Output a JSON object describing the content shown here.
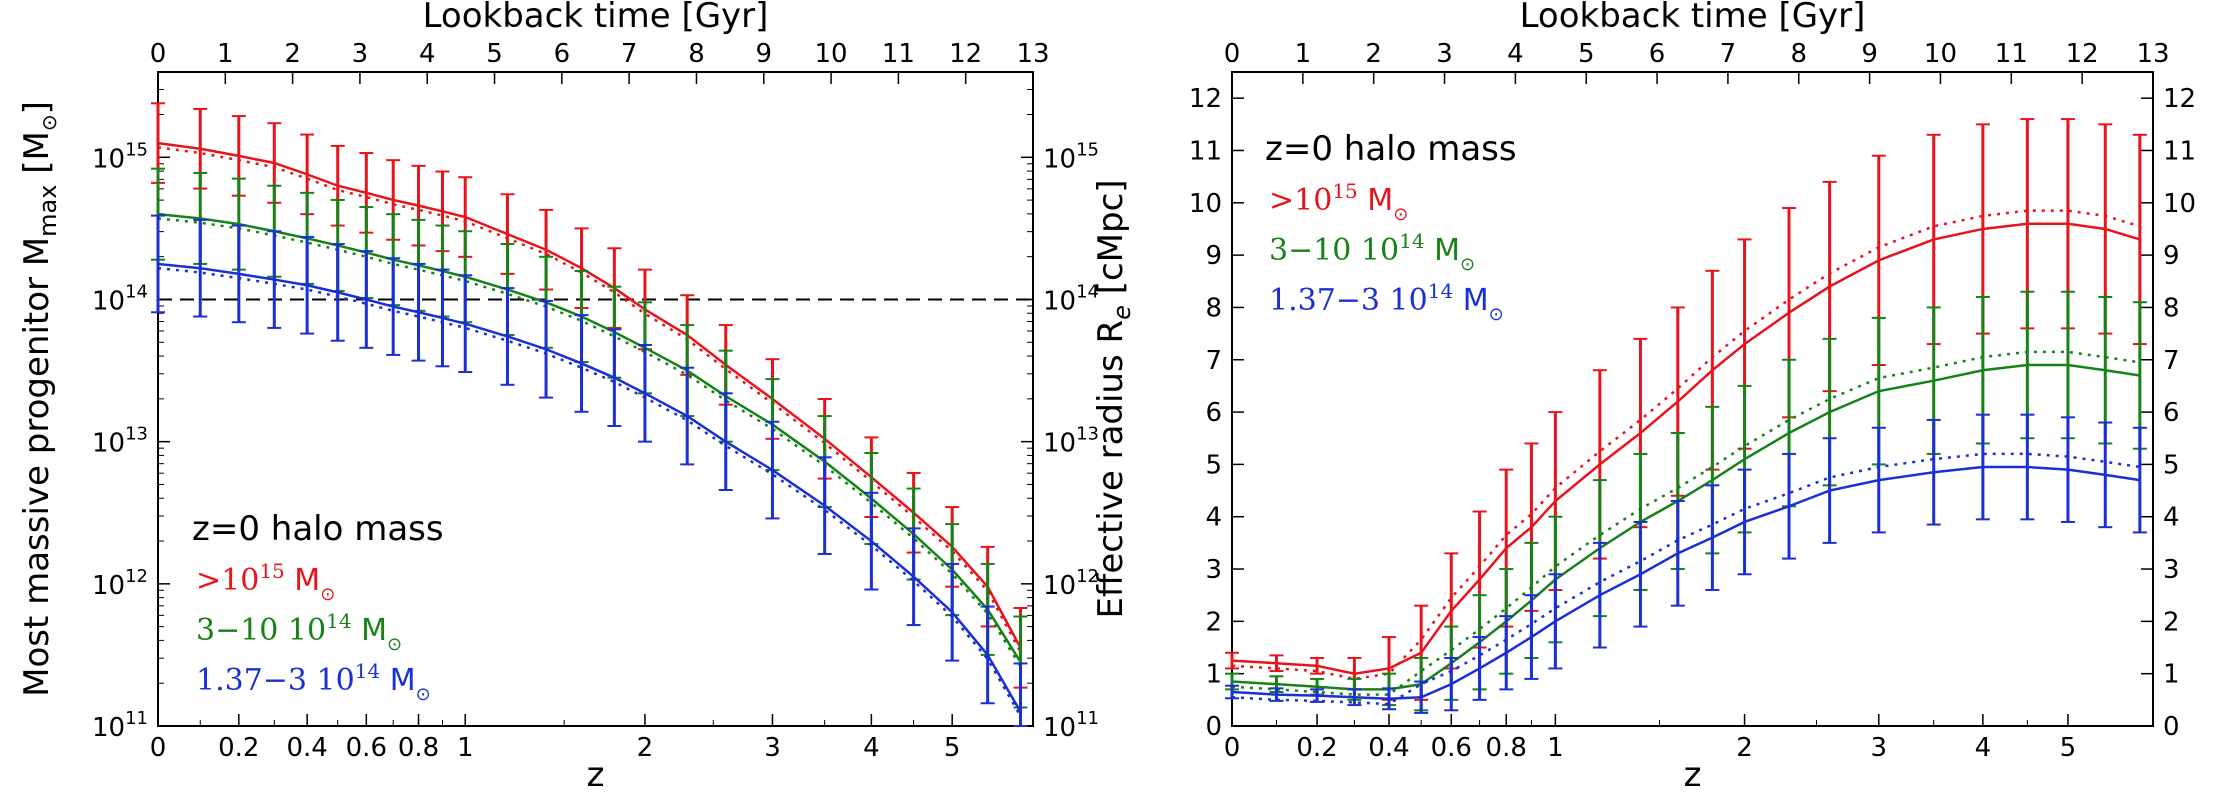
{
  "colors": {
    "red": "#e8141c",
    "green": "#178217",
    "blue": "#1a2fd4"
  },
  "chart_data": [
    {
      "type": "line",
      "xscale": "log1p",
      "yscale": "log",
      "xlabel": "z",
      "ylabel": "Most massive progenitor M",
      "ylabel_sub": "max",
      "ylabel_unit": "[M",
      "top_xlabel": "Lookback time  [Gyr]",
      "x_ticks": [
        0,
        0.2,
        0.4,
        0.6,
        0.8,
        1,
        2,
        3,
        4,
        5
      ],
      "x_tick_labels": [
        "0",
        "0.2",
        "0.4",
        "0.6",
        "0.8",
        "1",
        "2",
        "3",
        "4",
        "5"
      ],
      "top_ticks": [
        0,
        1,
        2,
        3,
        4,
        5,
        6,
        7,
        8,
        9,
        10,
        11,
        12,
        13
      ],
      "top_tick_labels": [
        "0",
        "1",
        "2",
        "3",
        "4",
        "5",
        "6",
        "7",
        "8",
        "9",
        "10",
        "11",
        "12",
        "13"
      ],
      "y_ticks": [
        11,
        12,
        13,
        14,
        15
      ],
      "y_tick_labels": [
        "10",
        "10",
        "10",
        "10",
        "10"
      ],
      "y_tick_exps": [
        "11",
        "12",
        "13",
        "14",
        "15"
      ],
      "xlim": [
        0,
        6.2
      ],
      "ylim_log10": [
        11,
        15.6
      ],
      "hline_log10": 14,
      "legend": {
        "title": "z=0 halo mass",
        "position": "lower-left",
        "entries": [
          {
            "text": ">10",
            "sup": "15",
            "unit": "M",
            "color": "red"
          },
          {
            "text": "3−10  10",
            "sup": "14",
            "unit": "M",
            "color": "green"
          },
          {
            "text": "1.37−3  10",
            "sup": "14",
            "unit": "M",
            "color": "blue"
          }
        ]
      },
      "series": [
        {
          "color": "red",
          "z": [
            0,
            0.1,
            0.2,
            0.3,
            0.4,
            0.5,
            0.6,
            0.7,
            0.8,
            0.9,
            1.0,
            1.2,
            1.4,
            1.6,
            1.8,
            2.0,
            2.3,
            2.6,
            3.0,
            3.5,
            4.0,
            4.5,
            5.0,
            5.5,
            6.0
          ],
          "log_m": [
            15.1,
            15.06,
            15.01,
            14.96,
            14.88,
            14.8,
            14.75,
            14.7,
            14.66,
            14.62,
            14.58,
            14.46,
            14.35,
            14.22,
            14.08,
            13.93,
            13.75,
            13.54,
            13.3,
            13.02,
            12.75,
            12.5,
            12.26,
            11.98,
            11.55
          ],
          "err": 0.28
        },
        {
          "color": "green",
          "z": [
            0,
            0.1,
            0.2,
            0.3,
            0.4,
            0.5,
            0.6,
            0.7,
            0.8,
            0.9,
            1.0,
            1.2,
            1.4,
            1.6,
            1.8,
            2.0,
            2.3,
            2.6,
            3.0,
            3.5,
            4.0,
            4.5,
            5.0,
            5.5,
            6.0
          ],
          "log_m": [
            14.6,
            14.57,
            14.53,
            14.48,
            14.43,
            14.38,
            14.33,
            14.28,
            14.24,
            14.2,
            14.16,
            14.07,
            13.98,
            13.88,
            13.77,
            13.66,
            13.5,
            13.32,
            13.12,
            12.86,
            12.6,
            12.35,
            12.1,
            11.82,
            11.45
          ],
          "err": 0.32
        },
        {
          "color": "blue",
          "z": [
            0,
            0.1,
            0.2,
            0.3,
            0.4,
            0.5,
            0.6,
            0.7,
            0.8,
            0.9,
            1.0,
            1.2,
            1.4,
            1.6,
            1.8,
            2.0,
            2.3,
            2.6,
            3.0,
            3.5,
            4.0,
            4.5,
            5.0,
            5.5,
            6.0
          ],
          "log_m": [
            14.25,
            14.22,
            14.18,
            14.14,
            14.1,
            14.05,
            14.0,
            13.95,
            13.91,
            13.87,
            13.83,
            13.74,
            13.65,
            13.55,
            13.45,
            13.34,
            13.18,
            13.0,
            12.8,
            12.55,
            12.3,
            12.05,
            11.8,
            11.5,
            11.1
          ],
          "err": 0.34
        }
      ]
    },
    {
      "type": "line",
      "xscale": "log1p",
      "yscale": "linear",
      "xlabel": "z",
      "ylabel": "Effective radius R",
      "ylabel_sub": "e",
      "ylabel_unit": "[cMpc]",
      "top_xlabel": "Lookback time  [Gyr]",
      "x_ticks": [
        0,
        0.2,
        0.4,
        0.6,
        0.8,
        1,
        2,
        3,
        4,
        5
      ],
      "x_tick_labels": [
        "0",
        "0.2",
        "0.4",
        "0.6",
        "0.8",
        "1",
        "2",
        "3",
        "4",
        "5"
      ],
      "top_ticks": [
        0,
        1,
        2,
        3,
        4,
        5,
        6,
        7,
        8,
        9,
        10,
        11,
        12,
        13
      ],
      "top_tick_labels": [
        "0",
        "1",
        "2",
        "3",
        "4",
        "5",
        "6",
        "7",
        "8",
        "9",
        "10",
        "11",
        "12",
        "13"
      ],
      "y_ticks": [
        0,
        1,
        2,
        3,
        4,
        5,
        6,
        7,
        8,
        9,
        10,
        11,
        12
      ],
      "y_tick_labels": [
        "0",
        "1",
        "2",
        "3",
        "4",
        "5",
        "6",
        "7",
        "8",
        "9",
        "10",
        "11",
        "12"
      ],
      "xlim": [
        0,
        6.2
      ],
      "ylim": [
        0,
        12.5
      ],
      "legend": {
        "title": "z=0 halo mass",
        "position": "upper-left",
        "entries": [
          {
            "text": ">10",
            "sup": "15",
            "unit": "M",
            "color": "red"
          },
          {
            "text": "3−10  10",
            "sup": "14",
            "unit": "M",
            "color": "green"
          },
          {
            "text": "1.37−3  10",
            "sup": "14",
            "unit": "M",
            "color": "blue"
          }
        ]
      },
      "series": [
        {
          "color": "red",
          "z": [
            0,
            0.1,
            0.2,
            0.3,
            0.4,
            0.5,
            0.6,
            0.7,
            0.8,
            0.9,
            1.0,
            1.2,
            1.4,
            1.6,
            1.8,
            2.0,
            2.3,
            2.6,
            3.0,
            3.5,
            4.0,
            4.5,
            5.0,
            5.5,
            6.0
          ],
          "r": [
            1.25,
            1.2,
            1.15,
            1.0,
            1.1,
            1.4,
            2.2,
            2.8,
            3.4,
            3.8,
            4.3,
            5.0,
            5.6,
            6.2,
            6.8,
            7.3,
            7.9,
            8.4,
            8.9,
            9.3,
            9.5,
            9.6,
            9.6,
            9.5,
            9.3
          ],
          "err": [
            0.15,
            0.15,
            0.15,
            0.3,
            0.6,
            0.9,
            1.1,
            1.3,
            1.5,
            1.6,
            1.7,
            1.8,
            1.8,
            1.8,
            1.9,
            2.0,
            2.0,
            2.0,
            2.0,
            2.0,
            2.0,
            2.0,
            2.0,
            2.0,
            2.0
          ]
        },
        {
          "color": "green",
          "z": [
            0,
            0.1,
            0.2,
            0.3,
            0.4,
            0.5,
            0.6,
            0.7,
            0.8,
            0.9,
            1.0,
            1.2,
            1.4,
            1.6,
            1.8,
            2.0,
            2.3,
            2.6,
            3.0,
            3.5,
            4.0,
            4.5,
            5.0,
            5.5,
            6.0
          ],
          "r": [
            0.85,
            0.8,
            0.75,
            0.7,
            0.7,
            0.8,
            1.2,
            1.6,
            2.0,
            2.4,
            2.8,
            3.4,
            3.9,
            4.3,
            4.7,
            5.1,
            5.6,
            6.0,
            6.4,
            6.6,
            6.8,
            6.9,
            6.9,
            6.8,
            6.7
          ],
          "err": [
            0.15,
            0.15,
            0.15,
            0.2,
            0.3,
            0.5,
            0.7,
            0.9,
            1.0,
            1.1,
            1.2,
            1.3,
            1.3,
            1.3,
            1.4,
            1.4,
            1.4,
            1.4,
            1.4,
            1.4,
            1.4,
            1.4,
            1.4,
            1.4,
            1.4
          ]
        },
        {
          "color": "blue",
          "z": [
            0,
            0.1,
            0.2,
            0.3,
            0.4,
            0.5,
            0.6,
            0.7,
            0.8,
            0.9,
            1.0,
            1.2,
            1.4,
            1.6,
            1.8,
            2.0,
            2.3,
            2.6,
            3.0,
            3.5,
            4.0,
            4.5,
            5.0,
            5.5,
            6.0
          ],
          "r": [
            0.65,
            0.6,
            0.58,
            0.55,
            0.52,
            0.55,
            0.8,
            1.1,
            1.4,
            1.7,
            2.0,
            2.5,
            2.9,
            3.3,
            3.6,
            3.9,
            4.2,
            4.5,
            4.7,
            4.85,
            4.95,
            4.95,
            4.9,
            4.8,
            4.7
          ],
          "err": [
            0.12,
            0.12,
            0.12,
            0.15,
            0.2,
            0.3,
            0.5,
            0.6,
            0.7,
            0.8,
            0.9,
            1.0,
            1.0,
            1.0,
            1.0,
            1.0,
            1.0,
            1.0,
            1.0,
            1.0,
            1.0,
            1.0,
            1.0,
            1.0,
            1.0
          ]
        }
      ]
    }
  ]
}
